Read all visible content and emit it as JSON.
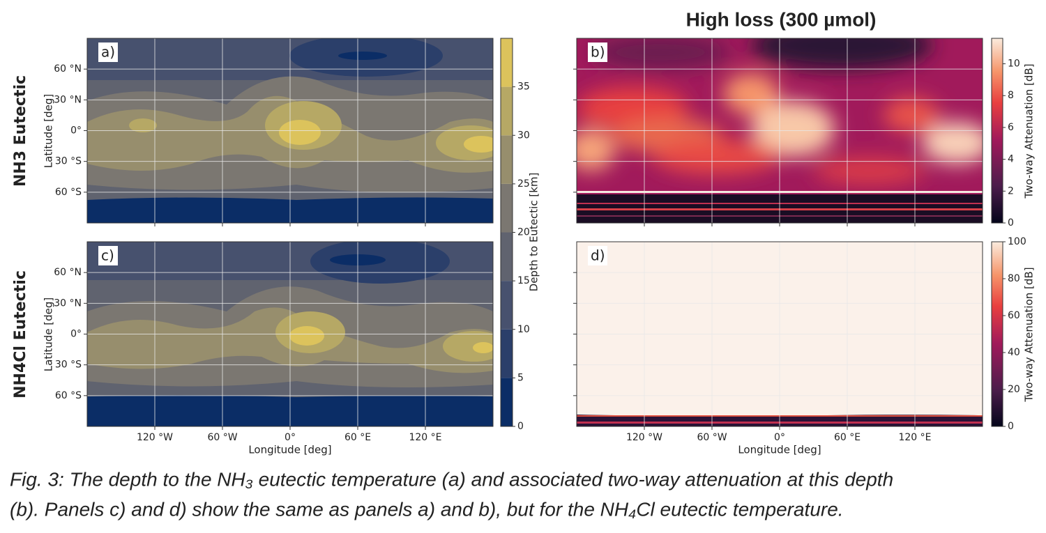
{
  "title": "High loss (300 µmol)",
  "row_labels": [
    "NH3 Eutectic",
    "NH4Cl Eutectic"
  ],
  "panels": [
    {
      "label": "a)"
    },
    {
      "label": "b)"
    },
    {
      "label": "c)"
    },
    {
      "label": "d)"
    }
  ],
  "axes": {
    "ylabel": "Latitude [deg]",
    "xlabel": "Longitude [deg]",
    "ylim": [
      -90,
      90
    ],
    "yticks": [
      {
        "value": 60,
        "label": "60 °N"
      },
      {
        "value": 30,
        "label": "30 °N"
      },
      {
        "value": 0,
        "label": "0°"
      },
      {
        "value": -30,
        "label": "30 °S"
      },
      {
        "value": -60,
        "label": "60 °S"
      }
    ],
    "xlim": [
      -180,
      180
    ],
    "xticks": [
      {
        "value": -120,
        "label": "120 °W"
      },
      {
        "value": -60,
        "label": "60 °W"
      },
      {
        "value": 0,
        "label": "0°"
      },
      {
        "value": 60,
        "label": "60 °E"
      },
      {
        "value": 120,
        "label": "120 °E"
      }
    ]
  },
  "colorbars": [
    {
      "label": "Depth to Eutectic [km]",
      "lim": [
        0,
        40
      ],
      "ticks": [
        0,
        5,
        10,
        15,
        20,
        25,
        30,
        35
      ],
      "colors": [
        "#0b2d66",
        "#2b3f6a",
        "#47516e",
        "#60636f",
        "#7b7771",
        "#978e6d",
        "#b6a865",
        "#dcc35c"
      ]
    },
    {
      "label": "Two-way Attenuation [dB]",
      "lim": [
        0,
        11.6
      ],
      "ticks": [
        0,
        2,
        4,
        6,
        8,
        10
      ]
    },
    {
      "label": "Two-way Attenuation [dB]",
      "lim": [
        0,
        100
      ],
      "ticks": [
        0,
        20,
        40,
        60,
        80,
        100
      ]
    }
  ],
  "caption": [
    "Fig. 3: The depth to the NH₃ eutectic temperature (a) and associated two-way attenuation at this depth",
    "(b). Panels c) and d) show the same as panels a) and b), but for the NH₄Cl eutectic temperature."
  ]
}
